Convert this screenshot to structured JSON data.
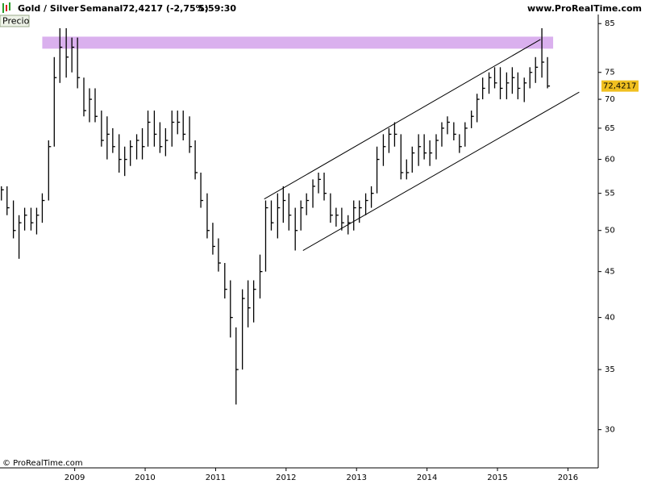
{
  "chart_data": {
    "type": "ohlc",
    "title": "Gold / Silver",
    "period": "Semanal",
    "quote": "72,4217 (-2,75%)",
    "time": "5:59:30",
    "source": "www.ProRealTime.com",
    "panel_label": "Precio",
    "copyright": "© ProRealTime.com",
    "color": "#000000",
    "ylog": true,
    "ylim": [
      27.2,
      87
    ],
    "yticks": [
      30,
      35,
      40,
      45,
      50,
      55,
      60,
      65,
      70,
      75,
      85
    ],
    "xlim": [
      2007.94,
      2016.43
    ],
    "xticks": [
      2009,
      2010,
      2011,
      2012,
      2013,
      2014,
      2015,
      2016
    ],
    "x": [
      2007.96,
      2008.04,
      2008.13,
      2008.21,
      2008.29,
      2008.38,
      2008.46,
      2008.54,
      2008.63,
      2008.71,
      2008.79,
      2008.88,
      2008.96,
      2009.04,
      2009.13,
      2009.21,
      2009.29,
      2009.38,
      2009.46,
      2009.54,
      2009.63,
      2009.71,
      2009.79,
      2009.88,
      2009.96,
      2010.04,
      2010.13,
      2010.21,
      2010.29,
      2010.38,
      2010.46,
      2010.54,
      2010.63,
      2010.71,
      2010.79,
      2010.88,
      2010.96,
      2011.04,
      2011.13,
      2011.21,
      2011.29,
      2011.38,
      2011.46,
      2011.54,
      2011.63,
      2011.71,
      2011.79,
      2011.88,
      2011.96,
      2012.04,
      2012.13,
      2012.21,
      2012.29,
      2012.38,
      2012.46,
      2012.54,
      2012.63,
      2012.71,
      2012.79,
      2012.88,
      2012.96,
      2013.04,
      2013.13,
      2013.21,
      2013.29,
      2013.38,
      2013.46,
      2013.54,
      2013.63,
      2013.71,
      2013.79,
      2013.88,
      2013.96,
      2014.04,
      2014.13,
      2014.21,
      2014.29,
      2014.38,
      2014.46,
      2014.54,
      2014.63,
      2014.71,
      2014.79,
      2014.88,
      2014.96,
      2015.04,
      2015.13,
      2015.21,
      2015.29,
      2015.38,
      2015.46,
      2015.54,
      2015.63,
      2015.71
    ],
    "high": [
      56,
      56,
      54,
      52,
      53,
      53,
      53,
      55,
      63,
      78,
      84,
      84,
      82,
      82,
      74,
      72,
      72,
      68,
      67,
      65,
      64,
      62,
      63,
      64,
      65,
      68,
      68,
      66,
      65,
      68,
      68,
      68,
      67,
      63,
      58,
      55,
      51,
      49,
      46,
      44,
      39,
      43,
      44,
      44,
      47,
      54,
      54,
      55,
      56,
      55,
      53,
      54,
      55,
      57,
      58,
      58,
      55,
      53,
      53,
      52,
      54,
      54,
      55,
      56,
      62,
      64,
      65,
      66,
      64,
      60,
      62,
      64,
      64,
      63,
      64,
      66,
      67,
      66,
      64,
      66,
      68,
      71,
      74,
      75,
      76,
      76,
      75,
      76,
      75,
      74,
      76,
      78,
      84,
      78
    ],
    "low": [
      54,
      52,
      49,
      46.5,
      50,
      50,
      49.5,
      51,
      54,
      62,
      73,
      74,
      75,
      72,
      67,
      66,
      66,
      62,
      60,
      61,
      58,
      57.5,
      59,
      60,
      60,
      62,
      62,
      61,
      60.5,
      62,
      64,
      63,
      61,
      57,
      53,
      49,
      47,
      45,
      42,
      38,
      32,
      35,
      39,
      39.5,
      42,
      45,
      50,
      49,
      51,
      50,
      47.5,
      50,
      52,
      53,
      55,
      54,
      51,
      50.5,
      50,
      49.5,
      50,
      51,
      52,
      53,
      55,
      59,
      61,
      62,
      57,
      57,
      58,
      59,
      60,
      59,
      60,
      62,
      64,
      63,
      61,
      62,
      65,
      66,
      70,
      71,
      72,
      70,
      70,
      71,
      70,
      69.5,
      72,
      73,
      74,
      72
    ],
    "close": [
      55.5,
      53,
      50,
      51,
      52,
      51,
      52,
      54,
      62,
      74,
      80,
      78,
      80,
      74,
      68,
      70,
      67,
      63,
      64,
      62,
      60,
      60,
      62,
      63,
      62,
      66,
      64,
      62,
      63,
      66,
      66,
      64,
      62,
      58,
      54,
      50,
      48,
      46,
      43,
      40,
      35,
      42,
      41,
      43,
      45,
      53,
      51,
      53,
      54,
      52,
      50,
      53,
      54,
      56,
      57,
      55,
      52,
      52,
      51,
      51,
      53,
      53,
      54,
      55,
      60,
      62,
      64,
      64,
      58,
      58,
      61,
      62,
      61,
      61,
      63,
      65,
      66,
      64,
      62,
      65,
      67,
      70,
      72,
      74,
      73,
      72,
      73,
      74,
      72,
      73,
      75,
      76,
      77,
      72.4217
    ],
    "last_price": {
      "value": 72.4217,
      "label": "72,4217"
    },
    "last_price_color": "#f0c020",
    "zone": {
      "x": [
        2008.54,
        2015.79
      ],
      "y": [
        79.7,
        82.2
      ],
      "color": "#dab0ee"
    },
    "trendlines": [
      {
        "x": [
          2011.69,
          2015.61
        ],
        "y": [
          54.2,
          81.6
        ]
      },
      {
        "x": [
          2012.24,
          2016.16
        ],
        "y": [
          47.5,
          71.3
        ]
      }
    ]
  }
}
